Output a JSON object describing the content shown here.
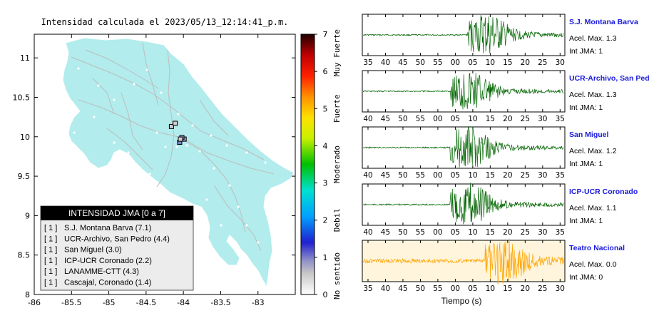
{
  "map": {
    "title": "Intensidad calculada el 2023/05/13_12:14:41_p.m.",
    "lon_ticks": [
      "-86",
      "-85.5",
      "-85",
      "-84.5",
      "-84",
      "-83.5",
      "-83"
    ],
    "lat_ticks": [
      "11",
      "10.5",
      "10",
      "9.5",
      "9",
      "8.5",
      "8"
    ],
    "xlim": [
      -86,
      -82.5
    ],
    "ylim": [
      8,
      11.3
    ],
    "land_color": "#b2ecec",
    "stations": [
      {
        "name": "S.J. Montana Barva",
        "lon": -84.16,
        "lat": 10.13
      },
      {
        "name": "UCR-Archivo, San Pedro",
        "lon": -84.05,
        "lat": 9.93
      },
      {
        "name": "San Miguel",
        "lon": -84.11,
        "lat": 10.17
      },
      {
        "name": "ICP-UCR Coronado",
        "lon": -83.99,
        "lat": 9.97
      },
      {
        "name": "LANAMME-CTT",
        "lon": -84.02,
        "lat": 9.99
      },
      {
        "name": "Cascajal, Coronado",
        "lon": -84.04,
        "lat": 9.97
      }
    ]
  },
  "colorbar": {
    "ticks": [
      "0",
      "1",
      "2",
      "3",
      "4",
      "5",
      "6",
      "7"
    ],
    "labels": [
      "No sentido",
      "Debil",
      "Moderado",
      "Fuerte",
      "Muy Fuerte"
    ]
  },
  "legend": {
    "title": "INTENSIDAD JMA [0 a 7]",
    "items": [
      {
        "badge": "[ 1 ]",
        "text": "S.J. Montana Barva (7.1)"
      },
      {
        "badge": "[ 1 ]",
        "text": "UCR-Archivo, San Pedro (4.4)"
      },
      {
        "badge": "[ 1 ]",
        "text": "San Miguel (3.0)"
      },
      {
        "badge": "[ 1 ]",
        "text": "ICP-UCR Coronado (2.2)"
      },
      {
        "badge": "[ 1 ]",
        "text": "LANAMME-CTT (4.3)"
      },
      {
        "badge": "[ 1 ]",
        "text": "Cascajal, Coronado (1.4)"
      }
    ]
  },
  "chart_data": [
    {
      "type": "line",
      "series_name": "S.J. Montana Barva",
      "accel_label": "Acel. Max. 1.3",
      "jma_label": "Int JMA: 1",
      "x_ticks": [
        "35",
        "40",
        "45",
        "50",
        "55",
        "00",
        "05",
        "10",
        "15",
        "20",
        "25",
        "30"
      ],
      "onset_tick": 6,
      "peak_amplitude": 1.3,
      "color": "#006400"
    },
    {
      "type": "line",
      "series_name": "UCR-Archivo, San Pedro",
      "accel_label": "Acel. Max. 1.3",
      "jma_label": "Int JMA: 1",
      "x_ticks": [
        "40",
        "45",
        "50",
        "55",
        "00",
        "05",
        "10",
        "15",
        "20",
        "25",
        "30",
        "35"
      ],
      "onset_tick": 5,
      "peak_amplitude": 1.3,
      "color": "#006400"
    },
    {
      "type": "line",
      "series_name": "San Miguel",
      "accel_label": "Acel. Max. 1.2",
      "jma_label": "Int JMA: 1",
      "x_ticks": [
        "40",
        "45",
        "50",
        "55",
        "00",
        "05",
        "10",
        "15",
        "20",
        "25",
        "30",
        "35"
      ],
      "onset_tick": 5,
      "peak_amplitude": 1.2,
      "color": "#006400"
    },
    {
      "type": "line",
      "series_name": "ICP-UCR Coronado",
      "accel_label": "Acel. Max. 1.1",
      "jma_label": "Int JMA: 1",
      "x_ticks": [
        "40",
        "45",
        "50",
        "55",
        "00",
        "05",
        "10",
        "15",
        "20",
        "25",
        "30",
        "35"
      ],
      "onset_tick": 5,
      "peak_amplitude": 1.1,
      "color": "#006400"
    },
    {
      "type": "line",
      "series_name": "Teatro Nacional",
      "accel_label": "Acel. Max. 0.0",
      "jma_label": "Int JMA: 0",
      "x_ticks": [
        "35",
        "40",
        "45",
        "50",
        "55",
        "00",
        "05",
        "10",
        "15",
        "20",
        "25",
        "30"
      ],
      "onset_tick": 7,
      "peak_amplitude": 0.0,
      "color": "#ffa500",
      "background": "#fff5dc"
    }
  ],
  "xlabel": "Tiempo (s)"
}
